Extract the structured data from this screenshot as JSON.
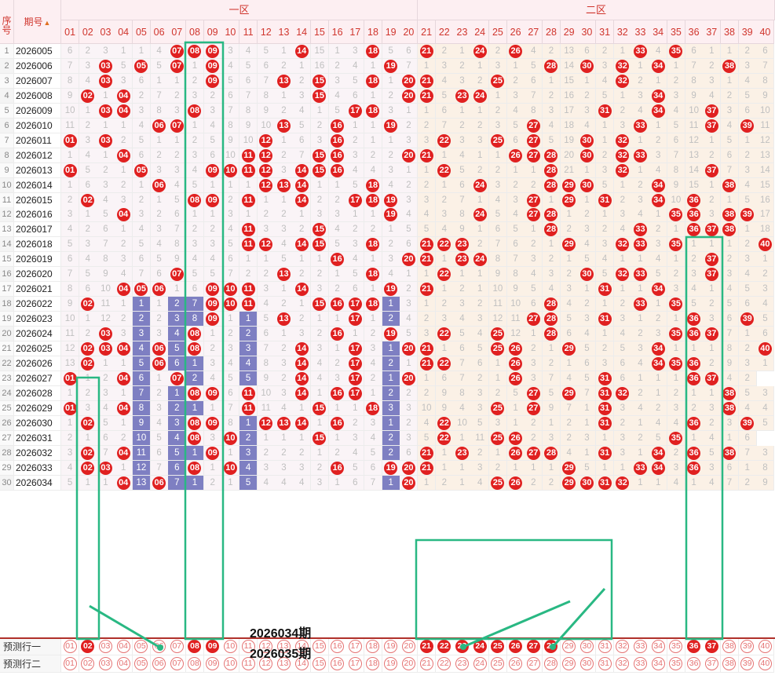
{
  "headers": {
    "seq": "序号",
    "period": "期号",
    "zone1": "一区",
    "zone2": "二区"
  },
  "sort_icon": "sort-arrow-icon",
  "numbers": [
    "01",
    "02",
    "03",
    "04",
    "05",
    "06",
    "07",
    "08",
    "09",
    "10",
    "11",
    "12",
    "13",
    "14",
    "15",
    "16",
    "17",
    "18",
    "19",
    "20",
    "21",
    "22",
    "23",
    "24",
    "25",
    "26",
    "27",
    "28",
    "29",
    "30",
    "31",
    "32",
    "33",
    "34",
    "35",
    "36",
    "37",
    "38",
    "39",
    "40"
  ],
  "periods": [
    "2026005",
    "2026006",
    "2026007",
    "2026008",
    "2026009",
    "2026010",
    "2026011",
    "2026012",
    "2026013",
    "2026014",
    "2026015",
    "2026016",
    "2026017",
    "2026018",
    "2026019",
    "2026020",
    "2026021",
    "2026022",
    "2026023",
    "2026024",
    "2026025",
    "2026026",
    "2026027",
    "2026028",
    "2026029",
    "2026030",
    "2026031",
    "2026032",
    "2026033",
    "2026034"
  ],
  "rows": [
    "6 2 3 1 1 4 H H H 3 4 5 1 H 15 1 3 H 5 6 H 2 1 H 2 H 4 2 13 6 2 1 H 4 H 6 1 1 2 6",
    "7 3 H 5 H 5 H 1 H 4 5 6 2 1 16 2 4 1 H 7 1 3 2 1 3 1 5 H 14 H 3 H 1 H 1 7 2 H 3 7",
    "8 4 H 3 6 1 1 2 H 5 6 7 H 2 H 3 5 H 1 H H 4 3 2 H 2 6 1 15 1 4 H 2 1 2 8 3 1 4 8",
    "9 H 1 H 2 7 2 3 2 6 7 8 1 3 H 4 6 1 2 H H 5 H H 1 3 7 2 16 2 5 1 3 H 3 9 4 2 5 9",
    "10 1 H H 3 8 3 H 3 7 8 9 2 4 1 5 H H 3 1 1 6 1 1 2 4 8 3 17 3 H 2 4 H 4 10 H 3 6 10",
    "11 2 1 1 4 H H 1 4 8 9 10 H 5 2 H 1 1 H 2 2 7 2 2 3 5 H 4 18 4 1 3 H 1 5 11 H 4 H 11",
    "H 3 H 2 5 1 1 2 5 9 10 H 1 6 3 H 2 1 1 3 3 H 3 3 H 6 H 5 19 H 1 H 1 2 6 12 1 5 1 12",
    "1 4 1 H 6 2 2 3 6 10 H H 2 7 H H 3 2 2 H H 1 4 1 1 H H H 20 H 2 H H 3 7 13 2 6 2 13",
    "H 5 2 1 H 3 3 4 H H H H 3 H H H 4 4 3 1 1 H 5 2 2 1 1 H 21 1 3 H 1 4 8 14 H 7 3 14",
    "1 6 3 2 1 H 4 5 1 1 1 H H H 1 1 5 H 4 2 2 1 6 H 3 2 2 H H H 5 1 2 H 9 15 1 H 4 15",
    "2 H 4 3 2 1 5 H H 2 H 1 1 H 2 2 H H H 3 3 2 7 1 4 3 H 1 H 1 H 2 3 H 10 H 2 1 5 16",
    "3 1 5 H 3 2 6 1 1 3 1 2 2 1 3 3 1 1 H 4 4 3 8 H 5 4 H H 1 2 1 3 4 1 H H 3 H H 17",
    "4 2 6 1 4 3 7 2 2 4 H 3 3 2 H 4 2 2 1 5 5 4 9 1 6 5 1 H 2 3 2 4 H 2 1 H H H 1 18",
    "5 3 7 2 5 4 8 3 3 5 H H 4 H H 5 3 H 2 6 H H H 2 7 6 2 1 H 4 3 H H 3 H 1 1 1 2 H",
    "6 4 8 3 6 5 9 4 4 6 1 1 5 1 1 H 4 1 3 H H 1 H H 8 7 3 2 1 5 4 1 1 4 1 2 H 2 3 1",
    "7 5 9 4 7 6 H 5 5 7 2 2 H 2 2 1 5 H 4 1 1 H 1 1 9 8 4 3 2 H 5 H H 5 2 3 H 3 4 2",
    "8 6 10 H H H 1 6 H H H 3 1 H 3 2 6 1 H 2 H 1 2 1 10 9 5 4 3 1 H 1 1 H 3 4 1 4 5 3",
    "9 H 11 1 1 1 2 7 H H H 4 2 1 H H H H 1 3 1 2 3 2 11 10 6 H 4 2 1 2 H 1 H 5 2 5 6 4",
    "10 1 12 2 2 2 3 8 H 1 1 5 H 2 1 1 H 1 2 4 2 3 4 3 12 11 H H 5 3 H 3 1 2 1 H 3 6 H 5",
    "11 2 H 3 3 3 4 H 1 2 2 6 1 3 2 H 1 2 H 5 3 H 5 4 H 12 1 H 6 4 1 4 2 3 H H H 7 1 6",
    "12 H H H 4 H 5 H 2 3 3 7 2 H 3 1 H 3 1 H H 1 6 5 H H 2 1 H 5 2 5 3 H 1 1 1 8 2 H",
    "13 H 1 1 5 H 6 1 3 4 4 8 3 H 4 2 H 4 2 1 H H 7 6 1 H 3 2 1 6 3 6 4 H H H 2 9 3 1",
    "H 1 2 H 6 1 H 2 4 5 5 9 2 H 4 3 H 2 1 H 1 6 7 2 1 H 3 7 4 5 H 6 1 1 1 H H 4 2",
    "1 2 3 1 7 2 1 H H 6 H 10 3 H 1 H H 1 2 2 2 9 8 3 2 5 H 5 H 7 H H 2 1 2 1 1 H 5 3",
    "H 3 4 H 8 3 2 1 1 7 H 11 4 1 H 1 1 H 3 3 10 9 4 3 H 1 H 9 7 1 H 3 4 2 3 2 3 H 4 4",
    "1 H 5 1 9 4 3 H H 8 1 H H H 1 H 2 3 1 2 4 H 10 5 3 1 2 1 2 1 H 2 1 4 4 H 2 3 H 5",
    "2 1 6 2 10 5 4 H 3 H 2 1 1 1 H 1 3 4 2 3 5 H 1 11 H H 2 3 2 3 1 3 2 5 H 1 4 1 6",
    "3 H 7 H 11 6 5 1 H 1 3 2 2 2 1 2 4 5 2 6 H 1 H 2 1 H H H 4 1 H 3 1 H 2 H 5 H 7 3",
    "4 H H 1 12 7 6 H 1 H 4 3 3 3 2 H 5 6 H H H 1 1 3 2 1 1 1 H 5 1 1 H H 3 H 3 6 1 8",
    "5 1 1 H 13 H 7 1 2 1 5 4 4 4 3 1 6 7 1 H 1 2 1 4 H H 2 2 H H H H 1 1 4 1 4 7 2 9"
  ],
  "pred_rows": [
    {
      "label": "预测行一",
      "filled": [
        "02",
        "08",
        "09",
        "21",
        "22",
        "23",
        "24",
        "25",
        "26",
        "27",
        "28",
        "36",
        "37"
      ]
    },
    {
      "label": "预测行二",
      "filled": []
    }
  ],
  "overlay": {
    "label_a": "2026034期",
    "label_b": "2026035期"
  },
  "colors": {
    "hit": "#e02020",
    "bar": "#7e7fc2",
    "frame": "#29b883",
    "zone1_bg": "#faf4f7",
    "zone2_bg": "#fbf1e6"
  }
}
